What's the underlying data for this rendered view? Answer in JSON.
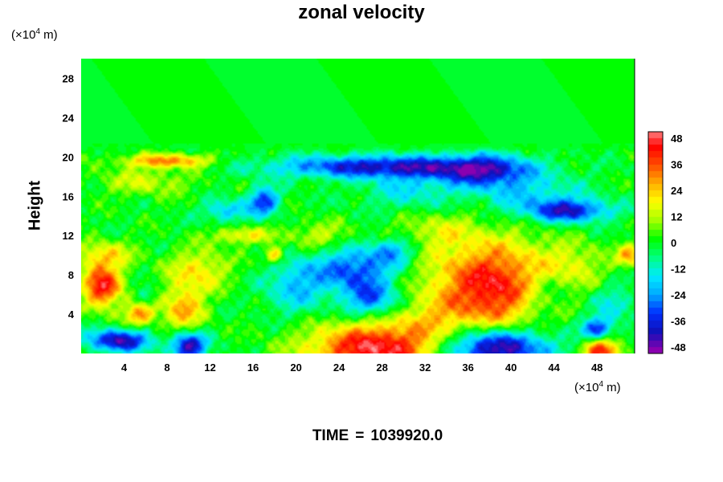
{
  "chart_data": {
    "type": "heatmap",
    "title": "zonal velocity",
    "ylabel": "Height",
    "x_unit": {
      "prefix": "(×10",
      "exp": "4",
      "suffix": " m)"
    },
    "y_unit": {
      "prefix": "(×10",
      "exp": "4",
      "suffix": " m)"
    },
    "xlim": [
      0,
      51.5
    ],
    "ylim": [
      0,
      30
    ],
    "x_ticks": [
      4,
      8,
      12,
      16,
      20,
      24,
      28,
      32,
      36,
      40,
      44,
      48
    ],
    "y_ticks": [
      4,
      8,
      12,
      16,
      20,
      24,
      28
    ],
    "colorbar": {
      "range": [
        -51,
        51
      ],
      "ticks": [
        48,
        36,
        24,
        12,
        0,
        -12,
        -24,
        -36,
        -48
      ],
      "colors": [
        "#8a00b0",
        "#1010b8",
        "#0030ff",
        "#00a8ff",
        "#00eaff",
        "#00ff80",
        "#00ff00",
        "#a0ff00",
        "#ffff00",
        "#ffb000",
        "#ff5000",
        "#ff0000",
        "#ff9a9a"
      ]
    },
    "features": [
      {
        "x": 38.5,
        "y": 6.8,
        "value": 46,
        "sx": 4.2,
        "sy": 3.2
      },
      {
        "x": 27.5,
        "y": 0.5,
        "value": 48,
        "sx": 4.5,
        "sy": 1.8
      },
      {
        "x": 2.0,
        "y": 6.8,
        "value": 44,
        "sx": 1.3,
        "sy": 1.5
      },
      {
        "x": 48.5,
        "y": 0.3,
        "value": 42,
        "sx": 1.2,
        "sy": 0.9
      },
      {
        "x": 9.5,
        "y": 4.5,
        "value": 26,
        "sx": 1.4,
        "sy": 1.8
      },
      {
        "x": 5.5,
        "y": 4.0,
        "value": 30,
        "sx": 1.0,
        "sy": 0.8
      },
      {
        "x": 8.0,
        "y": 19.6,
        "value": 30,
        "sx": 3.0,
        "sy": 0.5
      },
      {
        "x": 11.0,
        "y": 8.5,
        "value": 20,
        "sx": 2.0,
        "sy": 1.5
      },
      {
        "x": 2.0,
        "y": 10.0,
        "value": 20,
        "sx": 2.0,
        "sy": 1.0
      },
      {
        "x": 51.0,
        "y": 10.0,
        "value": 26,
        "sx": 0.8,
        "sy": 0.8
      },
      {
        "x": 18.0,
        "y": 10.0,
        "value": 28,
        "sx": 0.6,
        "sy": 0.6
      },
      {
        "x": 15.0,
        "y": 12.0,
        "value": 20,
        "sx": 2.0,
        "sy": 0.6
      },
      {
        "x": 6.0,
        "y": 17.5,
        "value": 14,
        "sx": 3.0,
        "sy": 1.0
      },
      {
        "x": 38.5,
        "y": 0.6,
        "value": -52,
        "sx": 3.6,
        "sy": 1.4
      },
      {
        "x": 10.0,
        "y": 0.8,
        "value": -46,
        "sx": 1.2,
        "sy": 1.0
      },
      {
        "x": 3.5,
        "y": 1.3,
        "value": -44,
        "sx": 2.0,
        "sy": 0.8
      },
      {
        "x": 28.0,
        "y": 19.0,
        "value": -40,
        "sx": 7.0,
        "sy": 0.8
      },
      {
        "x": 37.5,
        "y": 18.5,
        "value": -34,
        "sx": 3.0,
        "sy": 1.2
      },
      {
        "x": 45.5,
        "y": 14.5,
        "value": -36,
        "sx": 2.6,
        "sy": 0.8
      },
      {
        "x": 17.0,
        "y": 15.5,
        "value": -34,
        "sx": 1.0,
        "sy": 1.0
      },
      {
        "x": 25.5,
        "y": 8.5,
        "value": -32,
        "sx": 2.5,
        "sy": 1.5
      },
      {
        "x": 27.0,
        "y": 5.5,
        "value": -28,
        "sx": 1.8,
        "sy": 1.2
      },
      {
        "x": 48.0,
        "y": 2.5,
        "value": -34,
        "sx": 1.0,
        "sy": 0.8
      },
      {
        "x": 29.0,
        "y": 10.5,
        "value": -22,
        "sx": 1.5,
        "sy": 1.0
      },
      {
        "x": 13.5,
        "y": 14.5,
        "value": -20,
        "sx": 1.5,
        "sy": 0.8
      },
      {
        "x": 20.0,
        "y": 7.0,
        "value": -20,
        "sx": 2.0,
        "sy": 2.0
      },
      {
        "x": 43.0,
        "y": 6.0,
        "value": -18,
        "sx": 2.0,
        "sy": 2.0
      },
      {
        "x": 42.0,
        "y": 16.0,
        "value": -16,
        "sx": 3.5,
        "sy": 1.5
      },
      {
        "x": 30.5,
        "y": 16.5,
        "value": -14,
        "sx": 3.0,
        "sy": 1.5
      },
      {
        "x": 6.0,
        "y": 6.0,
        "value": -12,
        "sx": 0.7,
        "sy": 0.7
      },
      {
        "x": 49.5,
        "y": 5.0,
        "value": -14,
        "sx": 1.5,
        "sy": 1.5
      },
      {
        "x": 22.0,
        "y": 12.0,
        "value": 14,
        "sx": 2.0,
        "sy": 1.0
      },
      {
        "x": 33.0,
        "y": 12.5,
        "value": 12,
        "sx": 3.0,
        "sy": 1.5
      },
      {
        "x": 46.0,
        "y": 9.0,
        "value": 12,
        "sx": 2.0,
        "sy": 1.5
      },
      {
        "x": 32.5,
        "y": 3.5,
        "value": 10,
        "sx": 2.5,
        "sy": 1.5
      }
    ]
  },
  "footer": {
    "label": "TIME",
    "eq": "=",
    "value": "1039920.0"
  }
}
